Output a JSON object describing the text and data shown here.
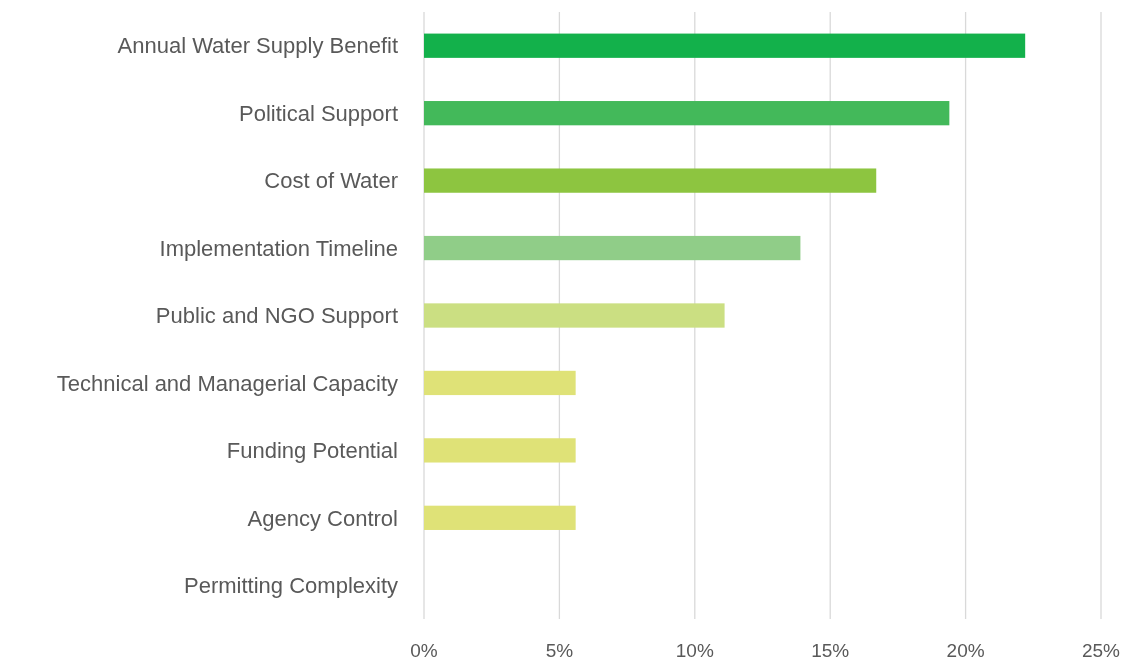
{
  "chart_data": {
    "type": "bar",
    "orientation": "horizontal",
    "categories": [
      "Annual Water Supply Benefit",
      "Political Support",
      "Cost of Water",
      "Implementation Timeline",
      "Public and NGO Support",
      "Technical and Managerial Capacity",
      "Funding Potential",
      "Agency Control",
      "Permitting Complexity"
    ],
    "values": [
      22.2,
      19.4,
      16.7,
      13.9,
      11.1,
      5.6,
      5.6,
      5.6,
      0
    ],
    "colors": [
      "#13b14b",
      "#43b95a",
      "#8dc540",
      "#90cd88",
      "#cbdf82",
      "#dfe277",
      "#dfe277",
      "#dfe277",
      "#dfe277"
    ],
    "xlim": [
      0,
      25
    ],
    "xticks": [
      {
        "value": 0,
        "label": "0%"
      },
      {
        "value": 5,
        "label": "5%"
      },
      {
        "value": 10,
        "label": "10%"
      },
      {
        "value": 15,
        "label": "15%"
      },
      {
        "value": 20,
        "label": "20%"
      },
      {
        "value": 25,
        "label": "25%"
      }
    ],
    "grid": "x"
  }
}
